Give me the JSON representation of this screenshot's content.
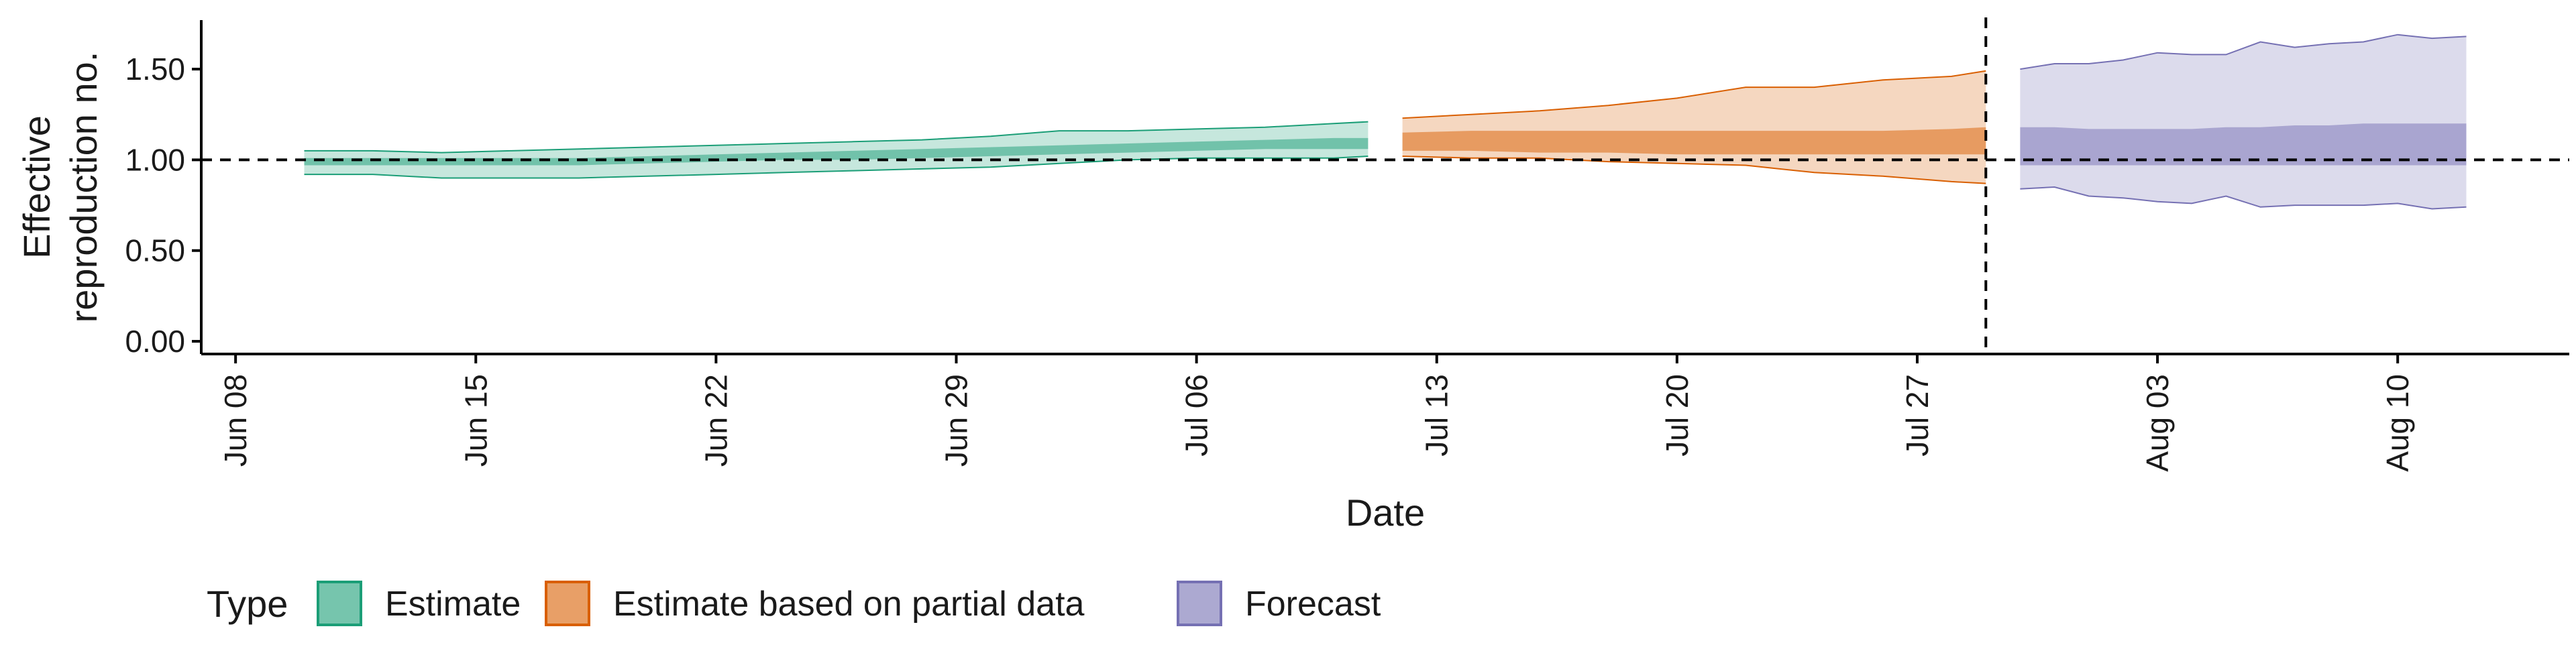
{
  "chart_data": {
    "type": "area",
    "xlabel": "Date",
    "ylabel_lines": [
      "Effective",
      "reproduction no."
    ],
    "x_ticks": [
      "2020-06-08",
      "2020-06-15",
      "2020-06-22",
      "2020-06-29",
      "2020-07-06",
      "2020-07-13",
      "2020-07-20",
      "2020-07-27",
      "2020-08-03",
      "2020-08-10"
    ],
    "x_tick_labels": [
      "Jun 08",
      "Jun 15",
      "Jun 22",
      "Jun 29",
      "Jul 06",
      "Jul 13",
      "Jul 20",
      "Jul 27",
      "Aug 03",
      "Aug 10"
    ],
    "xlim": [
      "2020-06-07",
      "2020-08-15"
    ],
    "y_ticks": [
      0,
      0.5,
      1,
      1.5
    ],
    "y_tick_labels": [
      "0.00",
      "0.50",
      "1.00",
      "1.50"
    ],
    "ylim": [
      -0.07,
      1.77
    ],
    "reference_hline": 1.0,
    "reference_vline": "2020-07-29",
    "legend": {
      "title": "Type",
      "position": "bottom-left"
    },
    "series": [
      {
        "name": "Estimate",
        "color": "#1b9e77",
        "x": [
          "2020-06-10",
          "2020-06-12",
          "2020-06-14",
          "2020-06-16",
          "2020-06-18",
          "2020-06-20",
          "2020-06-22",
          "2020-06-24",
          "2020-06-26",
          "2020-06-28",
          "2020-06-30",
          "2020-07-02",
          "2020-07-04",
          "2020-07-06",
          "2020-07-08",
          "2020-07-10",
          "2020-07-11"
        ],
        "lower_outer": [
          0.92,
          0.92,
          0.9,
          0.9,
          0.9,
          0.91,
          0.92,
          0.93,
          0.94,
          0.95,
          0.96,
          0.98,
          1.0,
          1.01,
          1.01,
          1.01,
          1.02
        ],
        "lower_inner": [
          0.97,
          0.97,
          0.97,
          0.97,
          0.97,
          0.98,
          0.99,
          1.0,
          1.0,
          1.01,
          1.02,
          1.03,
          1.04,
          1.05,
          1.06,
          1.06,
          1.06
        ],
        "upper_inner": [
          1.01,
          1.01,
          1.01,
          1.01,
          1.01,
          1.02,
          1.03,
          1.04,
          1.05,
          1.06,
          1.07,
          1.08,
          1.09,
          1.1,
          1.11,
          1.12,
          1.12
        ],
        "upper_outer": [
          1.05,
          1.05,
          1.04,
          1.05,
          1.06,
          1.07,
          1.08,
          1.09,
          1.1,
          1.11,
          1.13,
          1.16,
          1.16,
          1.17,
          1.18,
          1.2,
          1.21
        ]
      },
      {
        "name": "Estimate based on partial data",
        "color": "#d95f02",
        "x": [
          "2020-07-12",
          "2020-07-14",
          "2020-07-16",
          "2020-07-18",
          "2020-07-20",
          "2020-07-22",
          "2020-07-24",
          "2020-07-26",
          "2020-07-28",
          "2020-07-29"
        ],
        "lower_outer": [
          1.02,
          1.01,
          1.01,
          0.99,
          0.98,
          0.97,
          0.93,
          0.91,
          0.88,
          0.87
        ],
        "lower_inner": [
          1.05,
          1.05,
          1.04,
          1.04,
          1.03,
          1.03,
          1.03,
          1.03,
          1.03,
          1.03
        ],
        "upper_inner": [
          1.15,
          1.16,
          1.16,
          1.16,
          1.16,
          1.16,
          1.16,
          1.16,
          1.17,
          1.18
        ],
        "upper_outer": [
          1.23,
          1.25,
          1.27,
          1.3,
          1.34,
          1.4,
          1.4,
          1.44,
          1.46,
          1.49
        ]
      },
      {
        "name": "Forecast",
        "color": "#7570b3",
        "x": [
          "2020-07-30",
          "2020-07-31",
          "2020-08-01",
          "2020-08-02",
          "2020-08-03",
          "2020-08-04",
          "2020-08-05",
          "2020-08-06",
          "2020-08-07",
          "2020-08-08",
          "2020-08-09",
          "2020-08-10",
          "2020-08-11",
          "2020-08-12"
        ],
        "lower_outer": [
          0.84,
          0.85,
          0.8,
          0.79,
          0.77,
          0.76,
          0.8,
          0.74,
          0.75,
          0.75,
          0.75,
          0.76,
          0.73,
          0.74
        ],
        "lower_inner": [
          0.97,
          0.97,
          0.97,
          0.97,
          0.97,
          0.97,
          0.97,
          0.97,
          0.97,
          0.97,
          0.97,
          0.97,
          0.97,
          0.97
        ],
        "upper_inner": [
          1.18,
          1.18,
          1.17,
          1.17,
          1.17,
          1.17,
          1.18,
          1.18,
          1.19,
          1.19,
          1.2,
          1.2,
          1.2,
          1.2
        ],
        "upper_outer": [
          1.5,
          1.53,
          1.53,
          1.55,
          1.59,
          1.58,
          1.58,
          1.65,
          1.62,
          1.64,
          1.65,
          1.69,
          1.67,
          1.68
        ]
      }
    ]
  }
}
